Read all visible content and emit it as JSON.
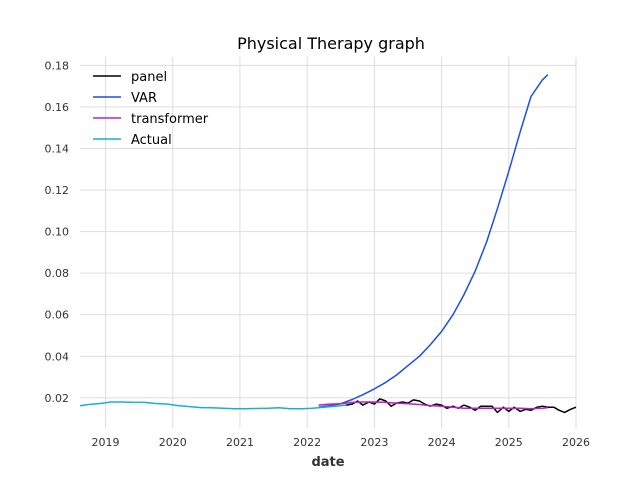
{
  "chart_data": {
    "type": "line",
    "title": "Physical Therapy graph",
    "xlabel": "date",
    "ylabel": "",
    "xlim": [
      2018.62,
      2026.0
    ],
    "ylim": [
      0.0055,
      0.184
    ],
    "x_ticks": [
      2019,
      2020,
      2021,
      2022,
      2023,
      2024,
      2025,
      2026
    ],
    "x_tick_labels": [
      "2019",
      "2020",
      "2021",
      "2022",
      "2023",
      "2024",
      "2025",
      "2026"
    ],
    "y_ticks": [
      0.02,
      0.04,
      0.06,
      0.08,
      0.1,
      0.12,
      0.14,
      0.16,
      0.18
    ],
    "y_tick_labels": [
      "0.02",
      "0.04",
      "0.06",
      "0.08",
      "0.10",
      "0.12",
      "0.14",
      "0.16",
      "0.18"
    ],
    "grid": true,
    "legend": "top-left",
    "series": [
      {
        "name": "panel",
        "color": "#000000",
        "x": [
          2022.58,
          2022.67,
          2022.75,
          2022.83,
          2022.92,
          2023.0,
          2023.08,
          2023.17,
          2023.25,
          2023.33,
          2023.42,
          2023.5,
          2023.58,
          2023.67,
          2023.75,
          2023.83,
          2023.92,
          2024.0,
          2024.08,
          2024.17,
          2024.25,
          2024.33,
          2024.42,
          2024.5,
          2024.58,
          2024.67,
          2024.75,
          2024.83,
          2024.92,
          2025.0,
          2025.08,
          2025.17,
          2025.25,
          2025.33,
          2025.42,
          2025.5,
          2025.58,
          2025.67,
          2025.75,
          2025.83,
          2025.92,
          2026.0
        ],
        "y": [
          0.0165,
          0.017,
          0.0185,
          0.0165,
          0.018,
          0.017,
          0.0195,
          0.0185,
          0.016,
          0.0175,
          0.018,
          0.0175,
          0.019,
          0.0185,
          0.017,
          0.016,
          0.017,
          0.0165,
          0.015,
          0.016,
          0.015,
          0.0165,
          0.0155,
          0.014,
          0.016,
          0.016,
          0.016,
          0.013,
          0.0155,
          0.0135,
          0.0155,
          0.0135,
          0.0145,
          0.014,
          0.0155,
          0.016,
          0.0155,
          0.0155,
          0.014,
          0.013,
          0.0145,
          0.0155
        ]
      },
      {
        "name": "VAR",
        "color": "#1f4fe0",
        "x": [
          2022.17,
          2022.33,
          2022.5,
          2022.67,
          2022.83,
          2023.0,
          2023.17,
          2023.33,
          2023.5,
          2023.67,
          2023.83,
          2024.0,
          2024.17,
          2024.33,
          2024.5,
          2024.67,
          2024.83,
          2025.0,
          2025.17,
          2025.33,
          2025.5,
          2025.58
        ],
        "y": [
          0.0155,
          0.0162,
          0.0172,
          0.0192,
          0.0215,
          0.0243,
          0.0275,
          0.031,
          0.0355,
          0.04,
          0.0455,
          0.052,
          0.06,
          0.0695,
          0.081,
          0.095,
          0.111,
          0.129,
          0.148,
          0.165,
          0.173,
          0.1755
        ]
      },
      {
        "name": "transformer",
        "color": "#c020c0",
        "x": [
          2022.17,
          2022.33,
          2022.5,
          2022.67,
          2022.83,
          2023.0,
          2023.17,
          2023.33,
          2023.5,
          2023.67,
          2023.83,
          2024.0,
          2024.17,
          2024.33,
          2024.5,
          2024.67,
          2024.83,
          2025.0,
          2025.17,
          2025.33,
          2025.5,
          2025.58
        ],
        "y": [
          0.0165,
          0.017,
          0.0172,
          0.0178,
          0.018,
          0.018,
          0.0178,
          0.0175,
          0.0172,
          0.0168,
          0.0163,
          0.016,
          0.0155,
          0.015,
          0.015,
          0.015,
          0.015,
          0.015,
          0.015,
          0.0148,
          0.015,
          0.0152
        ]
      },
      {
        "name": "Actual",
        "color": "#17b3c4",
        "x": [
          2018.62,
          2018.75,
          2018.92,
          2019.08,
          2019.25,
          2019.42,
          2019.58,
          2019.75,
          2019.92,
          2020.08,
          2020.25,
          2020.42,
          2020.58,
          2020.75,
          2020.92,
          2021.08,
          2021.25,
          2021.42,
          2021.58,
          2021.75,
          2021.92,
          2022.08,
          2022.25,
          2022.42,
          2022.58
        ],
        "y": [
          0.0162,
          0.0168,
          0.0173,
          0.018,
          0.018,
          0.0178,
          0.0178,
          0.0173,
          0.017,
          0.0163,
          0.0158,
          0.0153,
          0.0152,
          0.015,
          0.0148,
          0.0148,
          0.0149,
          0.015,
          0.0152,
          0.0148,
          0.0148,
          0.015,
          0.0155,
          0.016,
          0.0165
        ]
      }
    ]
  }
}
